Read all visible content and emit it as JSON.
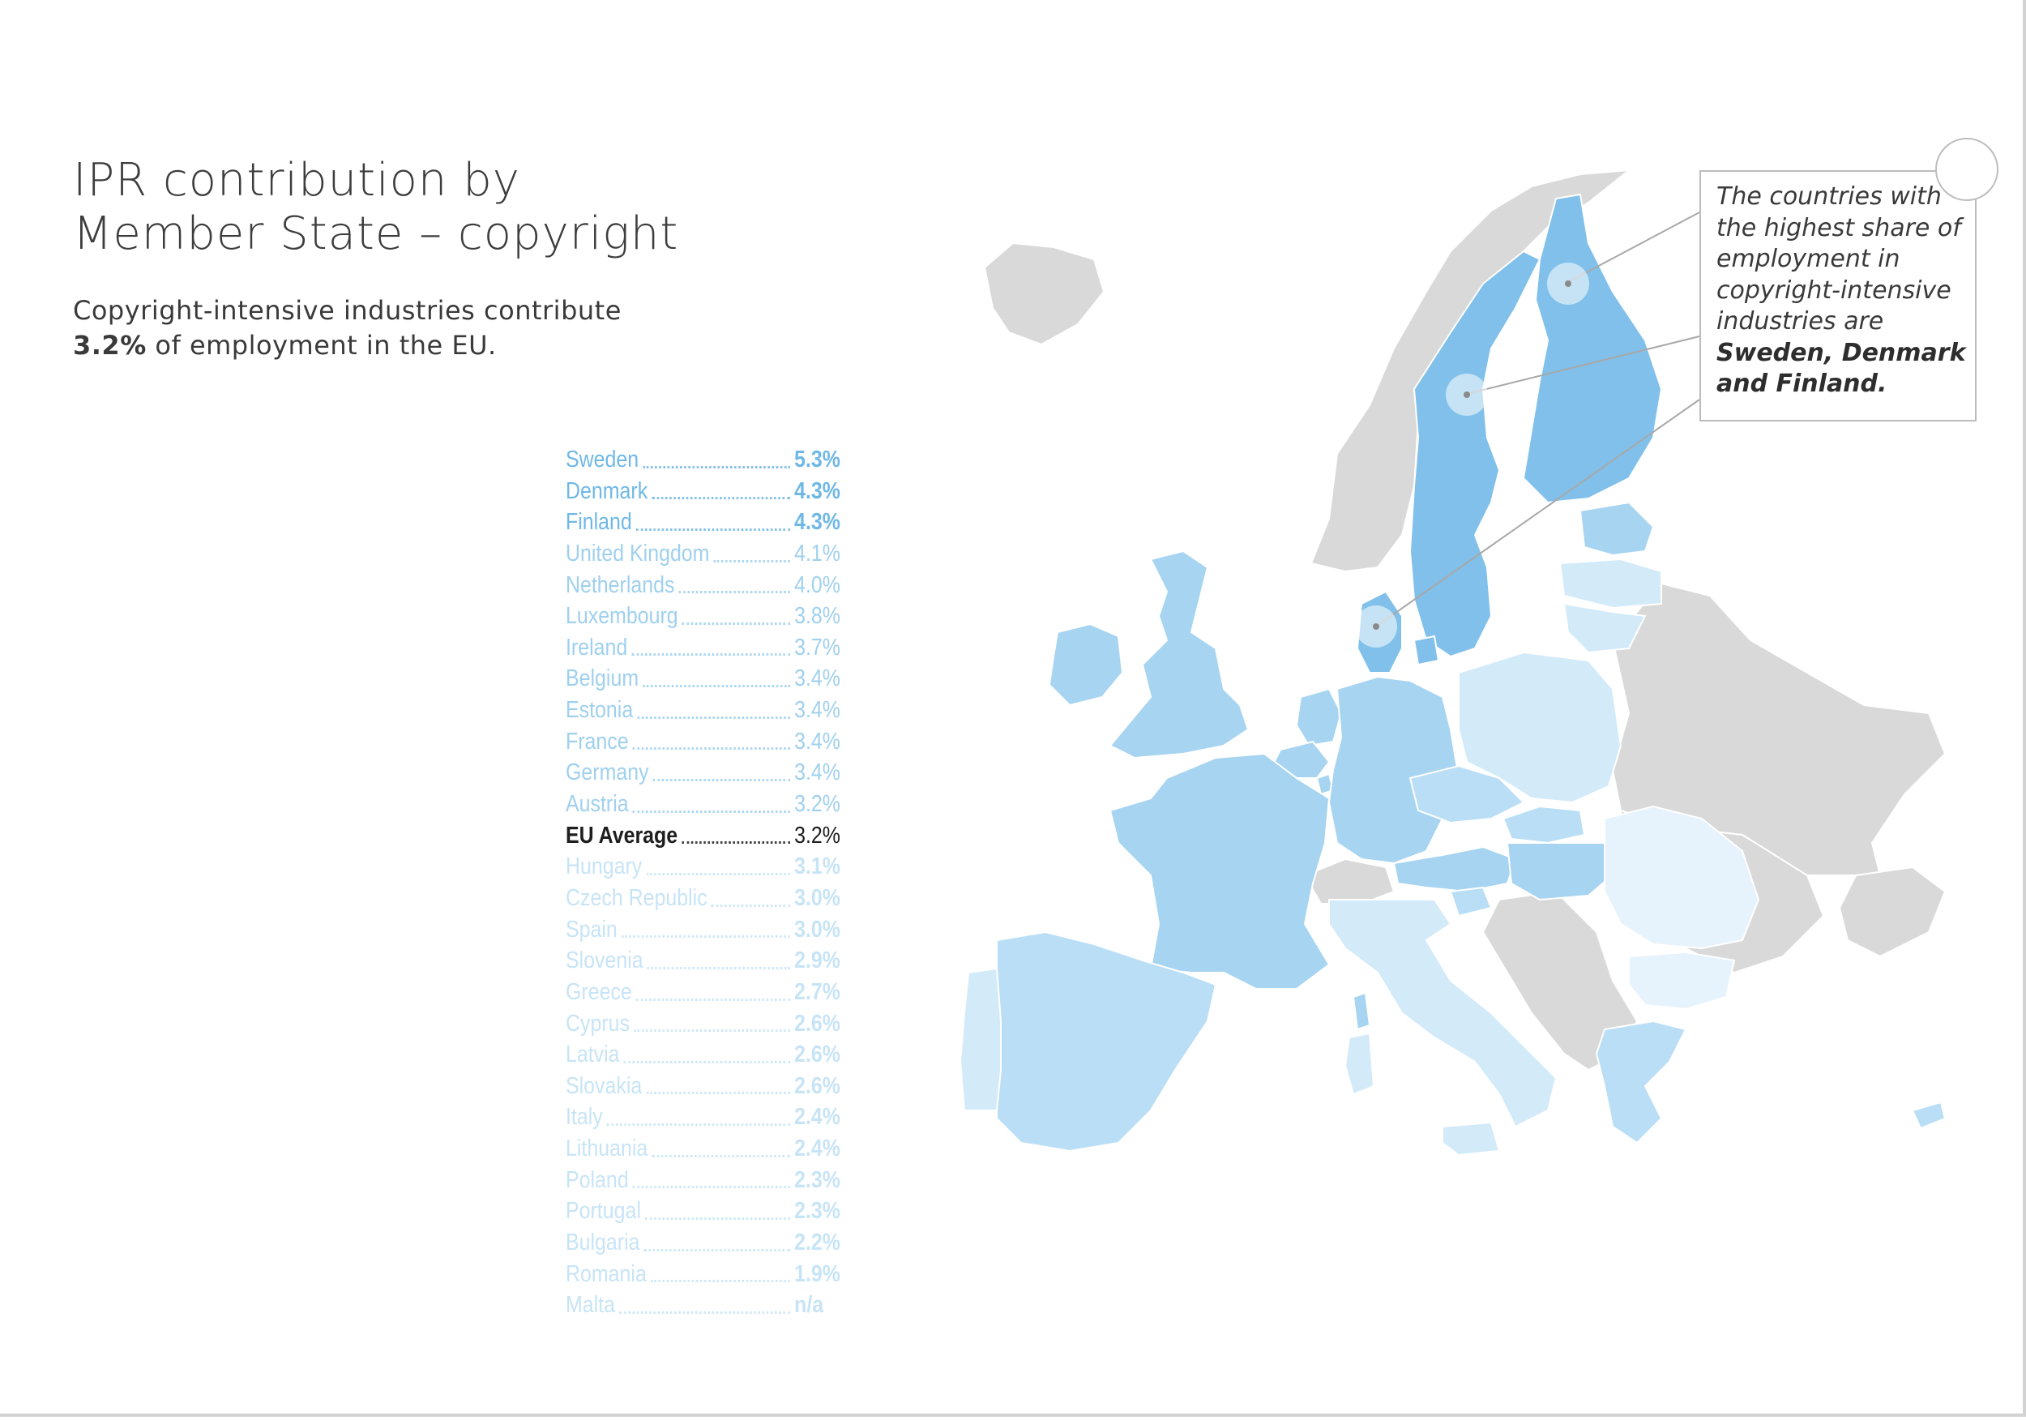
{
  "title": {
    "line1": "IPR contribution by",
    "line2": "Member State – copyright"
  },
  "subtitle": {
    "line1": "Copyright-intensive industries contribute",
    "value": "3.2%",
    "line2_rest": " of employment in the EU."
  },
  "ranking": [
    {
      "country": "Sweden",
      "value": "5.3%",
      "tier": "top"
    },
    {
      "country": "Denmark",
      "value": "4.3%",
      "tier": "top"
    },
    {
      "country": "Finland",
      "value": "4.3%",
      "tier": "top"
    },
    {
      "country": "United Kingdom",
      "value": "4.1%",
      "tier": "high"
    },
    {
      "country": "Netherlands",
      "value": "4.0%",
      "tier": "high"
    },
    {
      "country": "Luxembourg",
      "value": "3.8%",
      "tier": "high"
    },
    {
      "country": "Ireland",
      "value": "3.7%",
      "tier": "high"
    },
    {
      "country": "Belgium",
      "value": "3.4%",
      "tier": "high"
    },
    {
      "country": "Estonia",
      "value": "3.4%",
      "tier": "high"
    },
    {
      "country": "France",
      "value": "3.4%",
      "tier": "high"
    },
    {
      "country": "Germany",
      "value": "3.4%",
      "tier": "high"
    },
    {
      "country": "Austria",
      "value": "3.2%",
      "tier": "high"
    },
    {
      "country": "EU Average",
      "value": "3.2%",
      "tier": "avg"
    },
    {
      "country": "Hungary",
      "value": "3.1%",
      "tier": "pale"
    },
    {
      "country": "Czech Republic",
      "value": "3.0%",
      "tier": "pale"
    },
    {
      "country": "Spain",
      "value": "3.0%",
      "tier": "pale"
    },
    {
      "country": "Slovenia",
      "value": "2.9%",
      "tier": "pale"
    },
    {
      "country": "Greece",
      "value": "2.7%",
      "tier": "pale"
    },
    {
      "country": "Cyprus",
      "value": "2.6%",
      "tier": "pale"
    },
    {
      "country": "Latvia",
      "value": "2.6%",
      "tier": "pale"
    },
    {
      "country": "Slovakia",
      "value": "2.6%",
      "tier": "pale"
    },
    {
      "country": "Italy",
      "value": "2.4%",
      "tier": "pale"
    },
    {
      "country": "Lithuania",
      "value": "2.4%",
      "tier": "pale"
    },
    {
      "country": "Poland",
      "value": "2.3%",
      "tier": "pale"
    },
    {
      "country": "Portugal",
      "value": "2.3%",
      "tier": "pale"
    },
    {
      "country": "Bulgaria",
      "value": "2.2%",
      "tier": "pale"
    },
    {
      "country": "Romania",
      "value": "1.9%",
      "tier": "pale"
    },
    {
      "country": "Malta",
      "value": "n/a",
      "tier": "pale"
    }
  ],
  "callout": {
    "lines": [
      "The countries with",
      "the highest share of",
      "employment in",
      "copyright-intensive",
      "industries are"
    ],
    "highlight_line1": "Sweden, Denmark",
    "highlight_line2": "and Finland."
  },
  "colors": {
    "darkest": "#80c0ea",
    "dark": "#a6d4f1",
    "medium": "#b9def5",
    "light": "#d3eaf9",
    "lightest": "#e7f3fc",
    "non_eu": "#d9d9d9",
    "text": "#3d3d3d"
  }
}
